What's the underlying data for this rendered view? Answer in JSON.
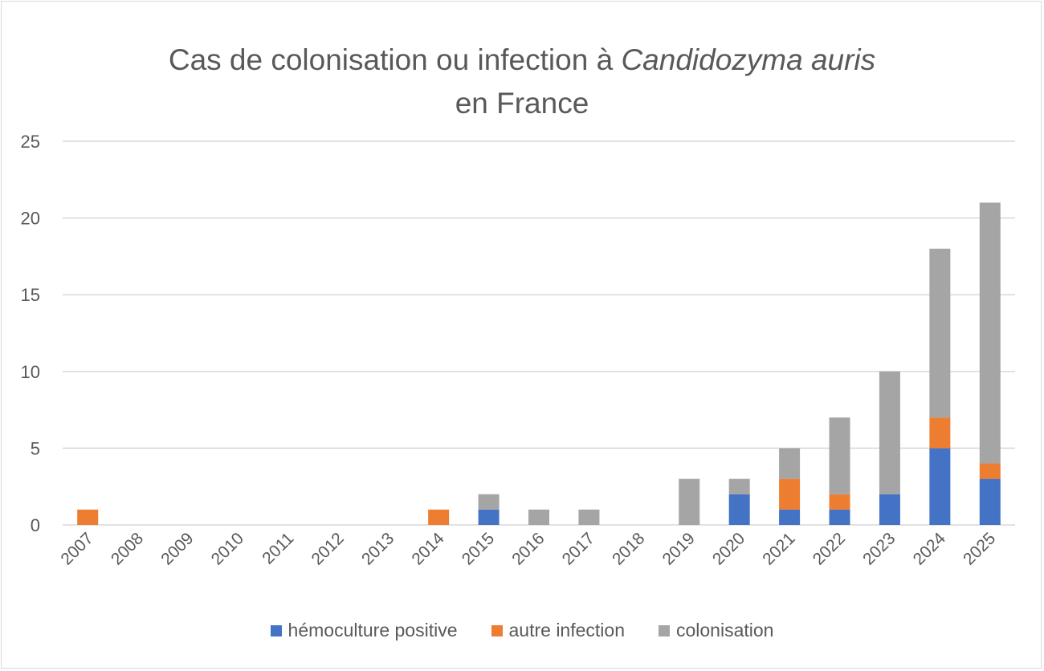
{
  "chart_data": {
    "type": "bar",
    "stacked": true,
    "title_part1": "Cas de colonisation ou infection à ",
    "title_italic": "Candidozyma auris",
    "title_line2": "en France",
    "xlabel": "",
    "ylabel": "",
    "ylim": [
      0,
      25
    ],
    "yticks": [
      "0",
      "5",
      "10",
      "15",
      "20",
      "25"
    ],
    "grid": true,
    "legend_position": "bottom",
    "categories": [
      "2007",
      "2008",
      "2009",
      "2010",
      "2011",
      "2012",
      "2013",
      "2014",
      "2015",
      "2016",
      "2017",
      "2018",
      "2019",
      "2020",
      "2021",
      "2022",
      "2023",
      "2024",
      "2025"
    ],
    "series": [
      {
        "name": "hémoculture positive",
        "color": "#4472c4",
        "values": [
          0,
          0,
          0,
          0,
          0,
          0,
          0,
          0,
          1,
          0,
          0,
          0,
          0,
          2,
          1,
          1,
          2,
          5,
          3
        ]
      },
      {
        "name": "autre infection",
        "color": "#ed7d31",
        "values": [
          1,
          0,
          0,
          0,
          0,
          0,
          0,
          1,
          0,
          0,
          0,
          0,
          0,
          0,
          2,
          1,
          0,
          2,
          1
        ]
      },
      {
        "name": "colonisation",
        "color": "#a5a5a5",
        "values": [
          0,
          0,
          0,
          0,
          0,
          0,
          0,
          0,
          1,
          1,
          1,
          0,
          3,
          1,
          2,
          5,
          8,
          11,
          17
        ]
      }
    ]
  }
}
